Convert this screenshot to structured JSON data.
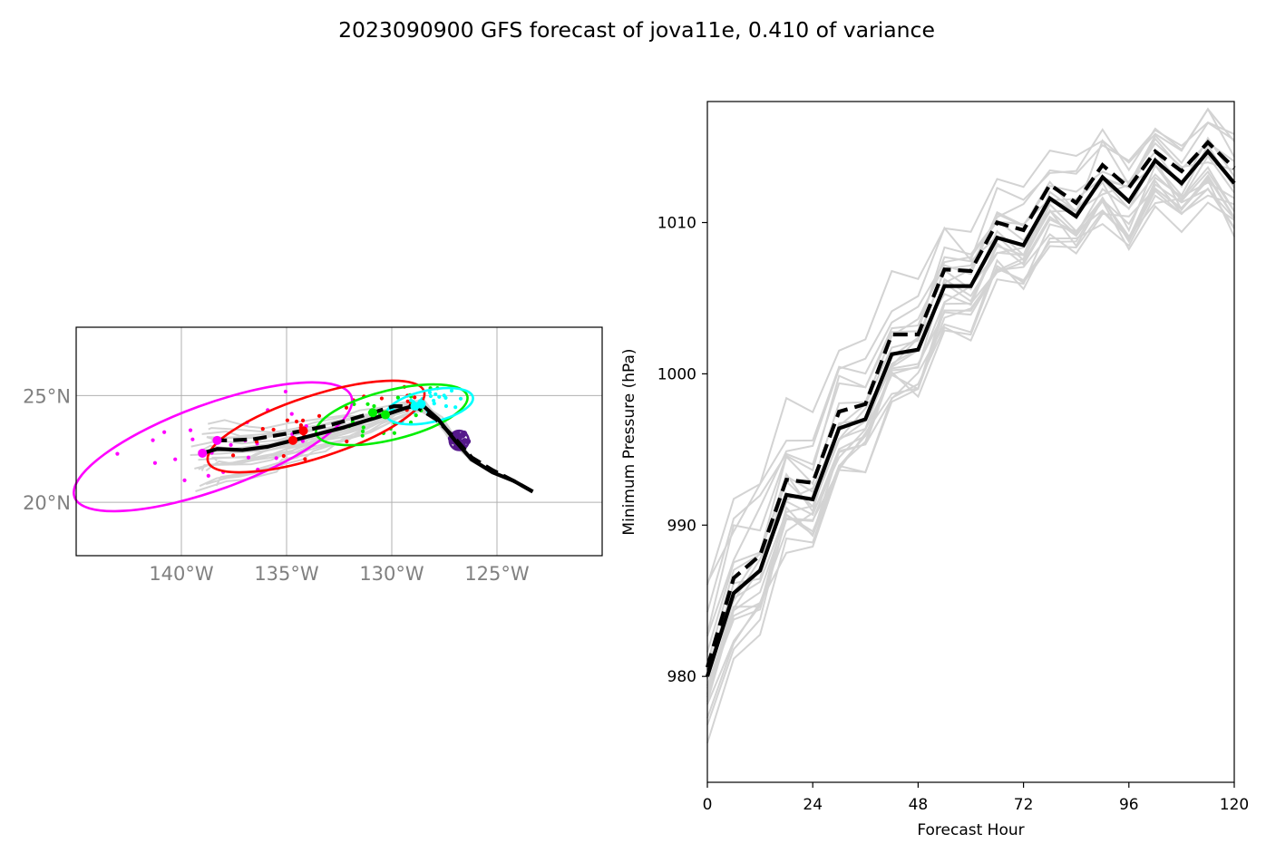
{
  "figure": {
    "title": "2023090900 GFS forecast of jova11e, 0.410 of variance"
  },
  "chart_data": [
    {
      "type": "line",
      "panel": "track-map",
      "xlim": [
        -145,
        -120
      ],
      "ylim": [
        17.5,
        28.2
      ],
      "grid": true,
      "x_ticks": [
        {
          "value": -140,
          "label": "140°W"
        },
        {
          "value": -135,
          "label": "135°W"
        },
        {
          "value": -130,
          "label": "130°W"
        },
        {
          "value": -125,
          "label": "125°W"
        }
      ],
      "y_ticks": [
        {
          "value": 20,
          "label": "20°N"
        },
        {
          "value": 25,
          "label": "25°N"
        }
      ],
      "colors": {
        "members": "#d3d3d3",
        "primary": "#000000",
        "ellipses": [
          "#ff00ff",
          "#ff0000",
          "#00ee00",
          "#00ffff",
          "#55198b"
        ]
      },
      "series": [
        {
          "style": "solid",
          "lon": [
            -123.3,
            -124.2,
            -125.2,
            -126.2,
            -127.0,
            -127.8,
            -128.6,
            -129.4,
            -130.3,
            -131.3,
            -132.3,
            -133.5,
            -134.7,
            -135.9,
            -137.1,
            -138.3,
            -139.0
          ],
          "lat": [
            20.5,
            21.0,
            21.4,
            22.0,
            22.9,
            23.9,
            24.6,
            24.4,
            24.1,
            23.8,
            23.5,
            23.2,
            22.9,
            22.6,
            22.45,
            22.5,
            22.3
          ]
        },
        {
          "style": "dashed",
          "lon": [
            -123.3,
            -124.2,
            -125.2,
            -126.2,
            -127.0,
            -127.9,
            -128.9,
            -129.9,
            -130.9,
            -131.9,
            -133.0,
            -134.2,
            -135.4,
            -136.6,
            -137.8,
            -138.3
          ],
          "lat": [
            20.5,
            21.0,
            21.5,
            22.1,
            23.0,
            23.9,
            24.5,
            24.5,
            24.2,
            23.9,
            23.6,
            23.35,
            23.15,
            22.95,
            22.9,
            22.9
          ]
        }
      ],
      "ellipses": [
        {
          "center_lon": -138.5,
          "center_lat": 22.6,
          "semi_major_lon": 7.0,
          "semi_minor_lat": 2.0,
          "angle_deg": 20
        },
        {
          "center_lon": -133.6,
          "center_lat": 23.55,
          "semi_major_lon": 5.4,
          "semi_minor_lat": 1.45,
          "angle_deg": 18
        },
        {
          "center_lon": -130.0,
          "center_lat": 24.1,
          "semi_major_lon": 3.7,
          "semi_minor_lat": 1.15,
          "angle_deg": 14
        },
        {
          "center_lon": -128.2,
          "center_lat": 24.5,
          "semi_major_lon": 2.1,
          "semi_minor_lat": 0.75,
          "angle_deg": 12
        },
        {
          "center_lon": -126.8,
          "center_lat": 22.9,
          "semi_major_lon": 0.45,
          "semi_minor_lat": 0.45,
          "angle_deg": 0
        }
      ]
    },
    {
      "type": "line",
      "panel": "pressure",
      "xlabel": "Forecast Hour",
      "ylabel": "Minimum Pressure (hPa)",
      "xlim": [
        0,
        120
      ],
      "ylim": [
        973,
        1018
      ],
      "x_ticks": [
        0,
        24,
        48,
        72,
        96,
        120
      ],
      "y_ticks": [
        980,
        990,
        1000,
        1010
      ],
      "colors": {
        "members": "#d3d3d3",
        "primary": "#000000"
      },
      "x": [
        0,
        6,
        12,
        18,
        24,
        30,
        36,
        42,
        48,
        54,
        60,
        66,
        72,
        78,
        84,
        90,
        96,
        102,
        108,
        114,
        120
      ],
      "series": [
        {
          "style": "solid",
          "values": [
            980,
            985.5,
            987,
            992,
            991.7,
            996.4,
            997,
            1001.3,
            1001.6,
            1005.8,
            1005.8,
            1009,
            1008.5,
            1011.6,
            1010.4,
            1013,
            1011.4,
            1014.1,
            1012.6,
            1014.7,
            1012.6
          ]
        },
        {
          "style": "dashed",
          "values": [
            980.6,
            986.5,
            988,
            993,
            992.8,
            997.5,
            998,
            1002.6,
            1002.6,
            1006.9,
            1006.8,
            1010,
            1009.5,
            1012.5,
            1011.3,
            1013.8,
            1012.3,
            1014.7,
            1013.4,
            1015.3,
            1013.6
          ]
        }
      ]
    }
  ]
}
